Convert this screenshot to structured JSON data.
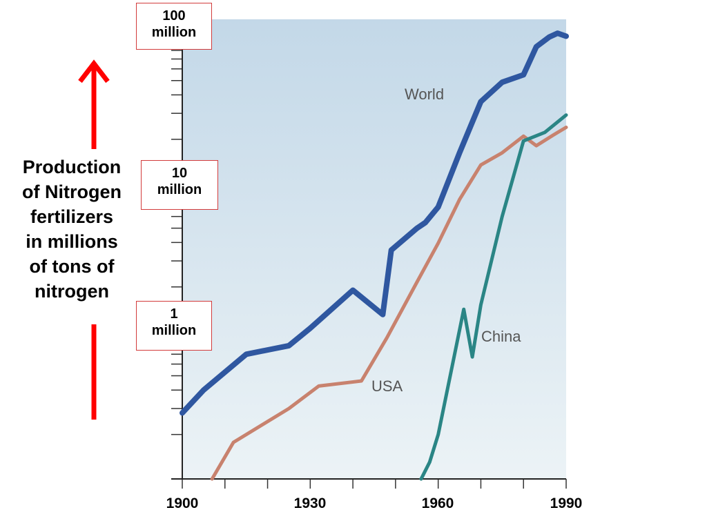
{
  "chart_data": {
    "type": "line",
    "title": "",
    "ylabel_lines": [
      "Production",
      "of Nitrogen",
      "fertilizers",
      "in millions",
      "of tons of",
      "nitrogen"
    ],
    "xlabel": "",
    "xlim": [
      1900,
      1990
    ],
    "x_ticks": [
      1900,
      1930,
      1960,
      1990
    ],
    "y_scale": "log",
    "ylim": [
      0.1,
      130
    ],
    "y_magnitude_labels": [
      {
        "value": 100,
        "lines": [
          "100",
          "million"
        ]
      },
      {
        "value": 10,
        "lines": [
          "10",
          "million"
        ]
      },
      {
        "value": 1,
        "lines": [
          "1",
          "million"
        ]
      }
    ],
    "grid": false,
    "colors": {
      "world": "#2f57a0",
      "usa": "#c8826e",
      "china": "#2a8585",
      "background_top": "#c3d8e8",
      "background_bottom": "#ecf3f6",
      "arrow": "#ff0000",
      "box_border": "#d23a3a"
    },
    "series": [
      {
        "name": "World",
        "x": [
          1900,
          1905,
          1915,
          1925,
          1930,
          1940,
          1947,
          1949,
          1955,
          1957,
          1960,
          1965,
          1970,
          1975,
          1980,
          1983,
          1986,
          1988,
          1990
        ],
        "values": [
          0.28,
          0.4,
          0.7,
          0.8,
          1.05,
          1.9,
          1.3,
          3.55,
          4.99,
          5.46,
          6.96,
          16.2,
          36.0,
          48.7,
          54.7,
          84.8,
          98.5,
          104.7,
          99.9
        ]
      },
      {
        "name": "USA",
        "x": [
          1907,
          1912,
          1925,
          1932,
          1942,
          1948,
          1955,
          1960,
          1965,
          1970,
          1975,
          1980,
          1983,
          1987,
          1990
        ],
        "values": [
          0.1,
          0.177,
          0.3,
          0.426,
          0.461,
          0.907,
          2.15,
          3.96,
          7.82,
          13.4,
          16.2,
          21.0,
          18.1,
          21.4,
          24.1
        ]
      },
      {
        "name": "China",
        "x": [
          1956,
          1958,
          1960,
          1965,
          1966,
          1968,
          1970,
          1975,
          1980,
          1985,
          1990
        ],
        "values": [
          0.1,
          0.13,
          0.2,
          1.02,
          1.41,
          0.671,
          1.51,
          6.0,
          19.5,
          22.3,
          29.2
        ]
      }
    ]
  }
}
